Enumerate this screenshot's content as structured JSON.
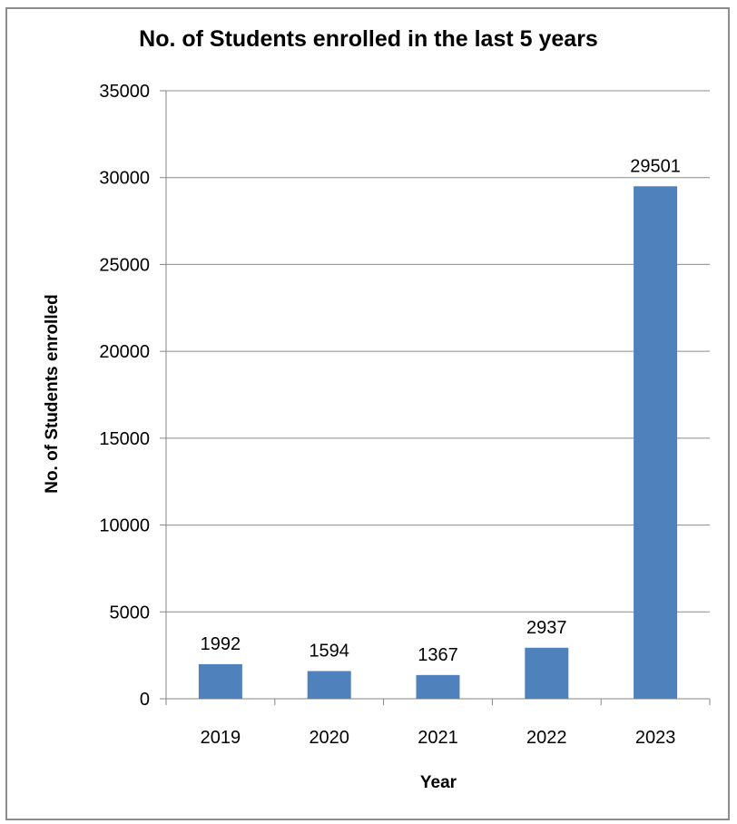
{
  "chart_data": {
    "type": "bar",
    "title": "No. of Students enrolled in the last 5 years",
    "xlabel": "Year",
    "ylabel": "No. of Students enrolled",
    "categories": [
      "2019",
      "2020",
      "2021",
      "2022",
      "2023"
    ],
    "values": [
      1992,
      1594,
      1367,
      2937,
      29501
    ],
    "data_labels": [
      "1992",
      "1594",
      "1367",
      "2937",
      "29501"
    ],
    "ylim": [
      0,
      35000
    ],
    "yticks": [
      0,
      5000,
      10000,
      15000,
      20000,
      25000,
      30000,
      35000
    ],
    "ytick_labels": [
      "0",
      "5000",
      "10000",
      "15000",
      "20000",
      "25000",
      "30000",
      "35000"
    ],
    "grid": true,
    "legend": "none",
    "colors": {
      "bar": "#4f81bd",
      "grid": "#8c8c8c",
      "axis": "#868686",
      "border": "#8c8c8c"
    }
  }
}
